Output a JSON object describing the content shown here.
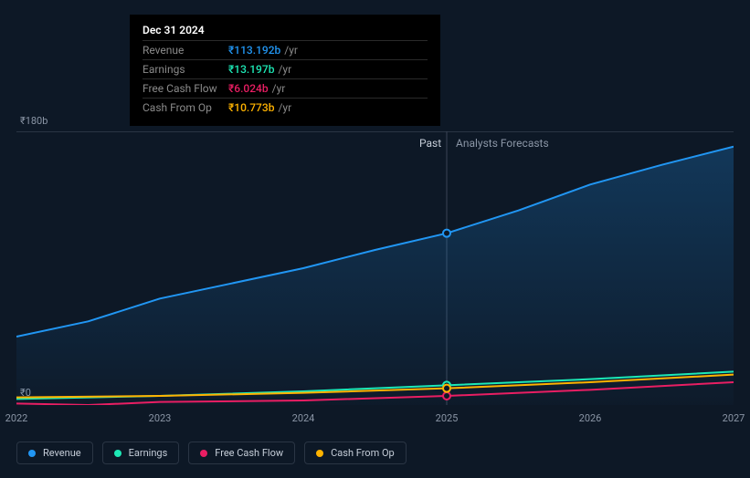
{
  "chart": {
    "type": "line",
    "background_color": "#0d1826",
    "grid_color": "#2a3544",
    "ylim": [
      0,
      180
    ],
    "y_ticks": [
      {
        "value": 180,
        "label": "₹180b"
      },
      {
        "value": 0,
        "label": "₹0"
      }
    ],
    "x_ticks": [
      {
        "t": 0.0,
        "label": "2022"
      },
      {
        "t": 0.2,
        "label": "2023"
      },
      {
        "t": 0.4,
        "label": "2024"
      },
      {
        "t": 0.6,
        "label": "2025"
      },
      {
        "t": 0.8,
        "label": "2026"
      },
      {
        "t": 1.0,
        "label": "2027"
      }
    ],
    "divider_t": 0.6,
    "era_labels": {
      "past": "Past",
      "forecast": "Analysts Forecasts"
    },
    "series": [
      {
        "key": "revenue",
        "label": "Revenue",
        "color": "#2196f3",
        "area_gradient": [
          "rgba(33,150,243,0.25)",
          "rgba(33,150,243,0.02)"
        ],
        "points": [
          {
            "t": 0.0,
            "v": 45
          },
          {
            "t": 0.1,
            "v": 55
          },
          {
            "t": 0.2,
            "v": 70
          },
          {
            "t": 0.3,
            "v": 80
          },
          {
            "t": 0.4,
            "v": 90
          },
          {
            "t": 0.5,
            "v": 102
          },
          {
            "t": 0.6,
            "v": 113
          },
          {
            "t": 0.7,
            "v": 128
          },
          {
            "t": 0.8,
            "v": 145
          },
          {
            "t": 0.9,
            "v": 158
          },
          {
            "t": 1.0,
            "v": 170
          }
        ]
      },
      {
        "key": "earnings",
        "label": "Earnings",
        "color": "#1de9b6",
        "points": [
          {
            "t": 0.0,
            "v": 4
          },
          {
            "t": 0.2,
            "v": 6
          },
          {
            "t": 0.4,
            "v": 9
          },
          {
            "t": 0.6,
            "v": 13
          },
          {
            "t": 0.8,
            "v": 17
          },
          {
            "t": 1.0,
            "v": 22
          }
        ]
      },
      {
        "key": "fcf",
        "label": "Free Cash Flow",
        "color": "#e91e63",
        "points": [
          {
            "t": 0.0,
            "v": 1
          },
          {
            "t": 0.1,
            "v": 0
          },
          {
            "t": 0.2,
            "v": 2
          },
          {
            "t": 0.4,
            "v": 3
          },
          {
            "t": 0.6,
            "v": 6
          },
          {
            "t": 0.8,
            "v": 10
          },
          {
            "t": 1.0,
            "v": 15
          }
        ]
      },
      {
        "key": "cfo",
        "label": "Cash From Op",
        "color": "#ffb300",
        "points": [
          {
            "t": 0.0,
            "v": 5
          },
          {
            "t": 0.2,
            "v": 6
          },
          {
            "t": 0.4,
            "v": 8
          },
          {
            "t": 0.6,
            "v": 11
          },
          {
            "t": 0.8,
            "v": 15
          },
          {
            "t": 1.0,
            "v": 20
          }
        ]
      }
    ],
    "cursor_t": 0.6,
    "marker_radius": 4
  },
  "tooltip": {
    "title": "Dec 31 2024",
    "rows": [
      {
        "label": "Revenue",
        "value": "₹113.192b",
        "unit": "/yr",
        "color": "#2196f3"
      },
      {
        "label": "Earnings",
        "value": "₹13.197b",
        "unit": "/yr",
        "color": "#1de9b6"
      },
      {
        "label": "Free Cash Flow",
        "value": "₹6.024b",
        "unit": "/yr",
        "color": "#e91e63"
      },
      {
        "label": "Cash From Op",
        "value": "₹10.773b",
        "unit": "/yr",
        "color": "#ffb300"
      }
    ]
  },
  "legend": [
    {
      "label": "Revenue",
      "color": "#2196f3"
    },
    {
      "label": "Earnings",
      "color": "#1de9b6"
    },
    {
      "label": "Free Cash Flow",
      "color": "#e91e63"
    },
    {
      "label": "Cash From Op",
      "color": "#ffb300"
    }
  ]
}
